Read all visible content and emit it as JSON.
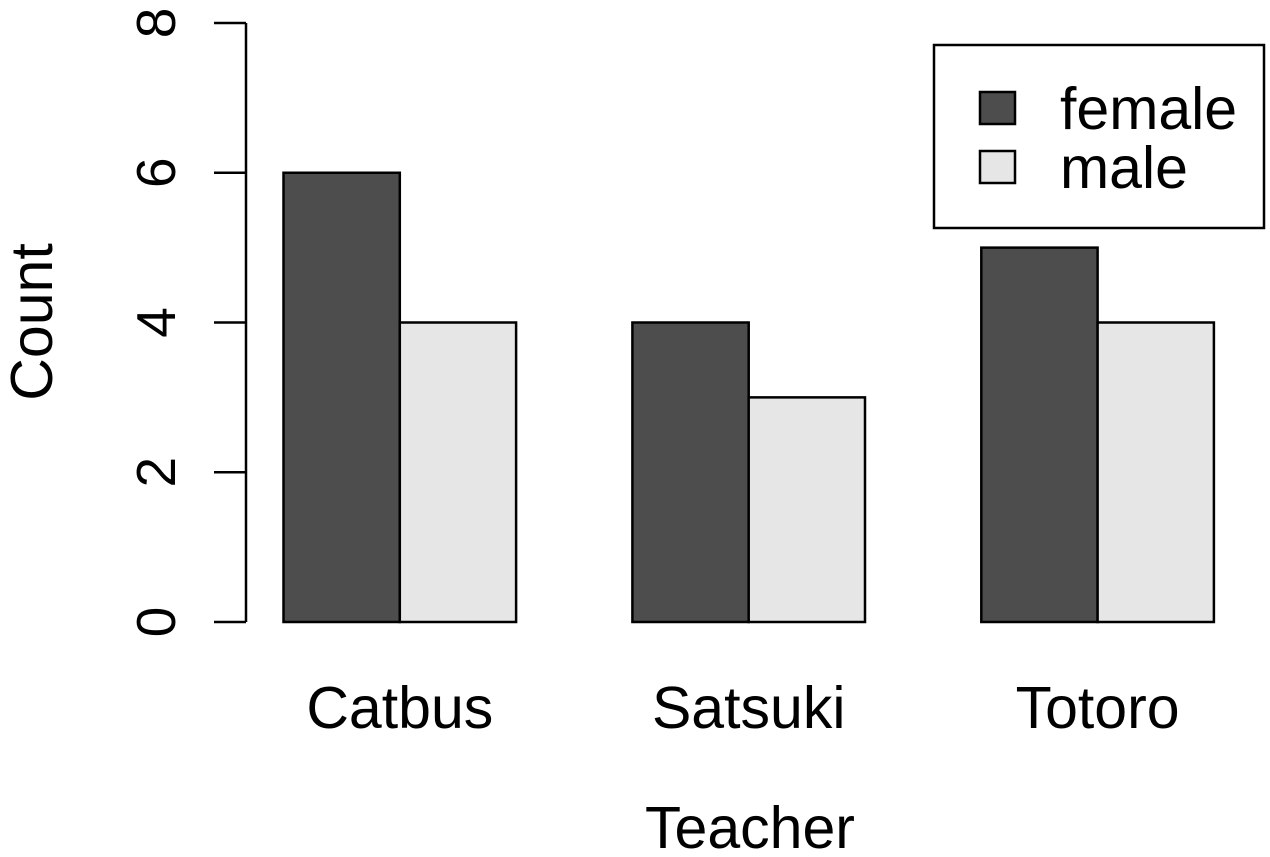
{
  "chart_data": {
    "type": "bar",
    "mode": "grouped",
    "xlabel": "Teacher",
    "ylabel": "Count",
    "ylim": [
      0,
      8
    ],
    "yticks": [
      0,
      2,
      4,
      6,
      8
    ],
    "categories": [
      "Catbus",
      "Satsuki",
      "Totoro"
    ],
    "series": [
      {
        "name": "female",
        "values": [
          6,
          4,
          5
        ],
        "color": "#4d4d4d"
      },
      {
        "name": "male",
        "values": [
          4,
          3,
          4
        ],
        "color": "#e6e6e6"
      }
    ],
    "legend_position": "top-right",
    "grid": false
  }
}
